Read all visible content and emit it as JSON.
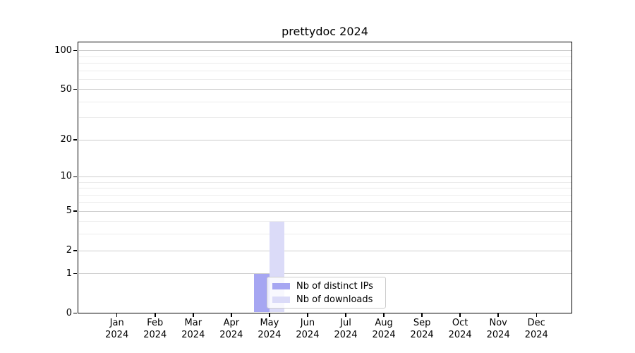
{
  "chart_data": {
    "type": "bar",
    "title": "prettydoc 2024",
    "categories": [
      "Jan",
      "Feb",
      "Mar",
      "Apr",
      "May",
      "Jun",
      "Jul",
      "Aug",
      "Sep",
      "Oct",
      "Nov",
      "Dec"
    ],
    "category_year": "2024",
    "series": [
      {
        "name": "Nb of distinct IPs",
        "color": "#a6a6f2",
        "values": [
          0,
          0,
          0,
          0,
          1,
          0,
          0,
          0,
          0,
          0,
          0,
          0
        ]
      },
      {
        "name": "Nb of downloads",
        "color": "#dbdbf8",
        "values": [
          0,
          0,
          0,
          0,
          4,
          0,
          0,
          0,
          0,
          0,
          0,
          0
        ]
      }
    ],
    "xlabel": "",
    "ylabel": "",
    "y_scale": "log1p",
    "y_ticks_major": [
      0,
      1,
      2,
      5,
      10,
      20,
      50,
      100
    ],
    "y_ticks_minor": [
      3,
      4,
      6,
      7,
      8,
      9,
      30,
      40,
      60,
      70,
      80,
      90
    ],
    "ylim": [
      0,
      118
    ],
    "grid": "horizontal",
    "legend_position": "lower-left-inside"
  }
}
